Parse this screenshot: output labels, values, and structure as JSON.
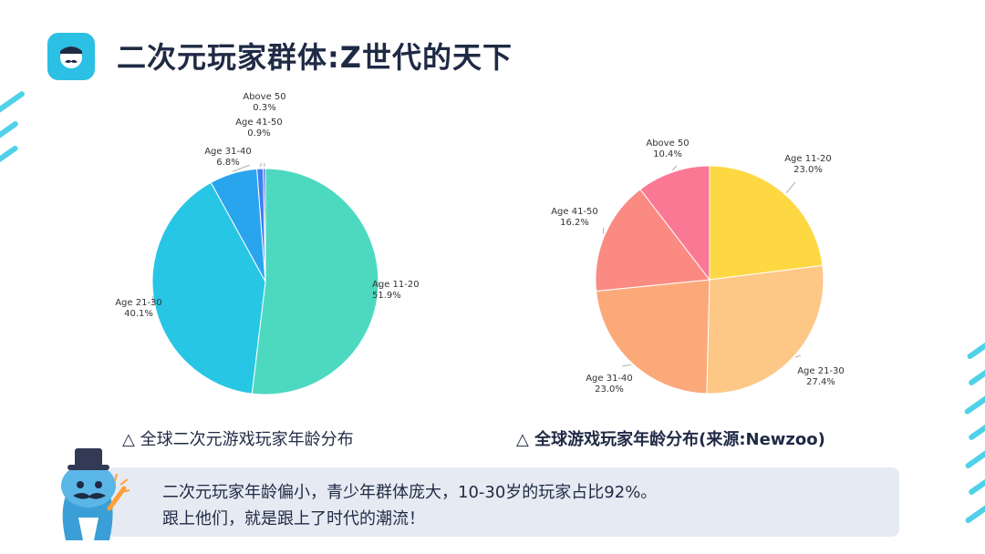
{
  "header": {
    "title": "二次元玩家群体:Z世代的天下"
  },
  "logo": {
    "icon": "mascot-logo-icon",
    "color": "#2bc0e4"
  },
  "captions": {
    "left": "△ 全球二次元游戏玩家年龄分布",
    "right": "△ 全球游戏玩家年龄分布(来源:Newzoo)"
  },
  "note": {
    "line1": "二次元玩家年龄偏小，青少年群体庞大，10-30岁的玩家占比92%。",
    "line2": "跟上他们，就是跟上了时代的潮流！"
  },
  "chart_data": [
    {
      "type": "pie",
      "categories": [
        "Age 11-20",
        "Age 21-30",
        "Age 31-40",
        "Age 41-50",
        "Above 50"
      ],
      "values": [
        51.9,
        40.1,
        6.8,
        0.9,
        0.3
      ],
      "value_labels": [
        "51.9%",
        "40.1%",
        "6.8%",
        "0.9%",
        "0.3%"
      ],
      "colors": [
        "#4dd9c0",
        "#27c6e4",
        "#29a5ee",
        "#3b7ff0",
        "#3a5fd8"
      ]
    },
    {
      "type": "pie",
      "categories": [
        "Age 11-20",
        "Age 21-30",
        "Age 31-40",
        "Age 41-50",
        "Above 50"
      ],
      "values": [
        23.0,
        27.4,
        23.0,
        16.2,
        10.4
      ],
      "value_labels": [
        "23.0%",
        "27.4%",
        "23.0%",
        "16.2%",
        "10.4%"
      ],
      "colors": [
        "#fed843",
        "#fdc786",
        "#fca97a",
        "#fb8a82",
        "#fb7895"
      ]
    }
  ]
}
